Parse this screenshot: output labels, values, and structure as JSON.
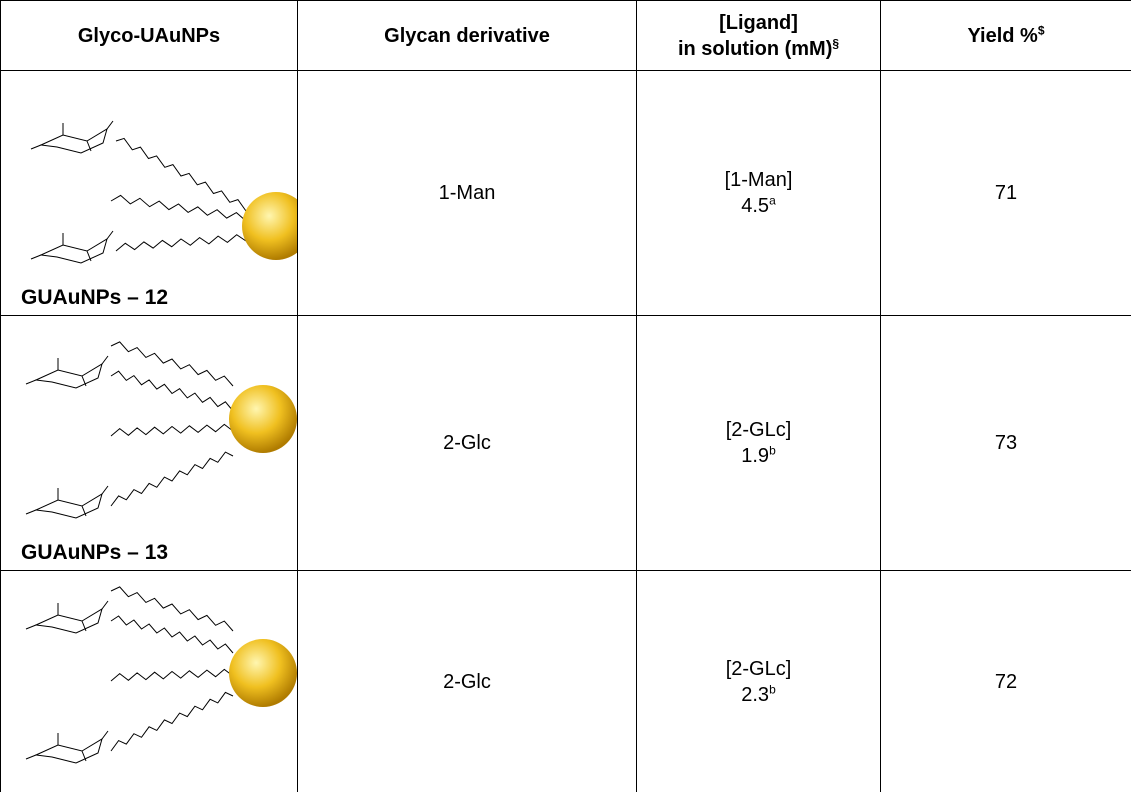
{
  "table": {
    "header": {
      "glyco": "Glyco-UAuNPs",
      "derivative": "Glycan derivative",
      "ligand_line1": "[Ligand]",
      "ligand_line2": "in solution (mM)",
      "ligand_sup": "§",
      "yield": "Yield %",
      "yield_sup": "$"
    },
    "rows": [
      {
        "nanoparticle": "GUAuNPs – 12",
        "derivative": "1-Man",
        "ligand": "[1-Man]",
        "concentration": 4.5,
        "note": "a",
        "yield": 71
      },
      {
        "nanoparticle": "GUAuNPs – 13",
        "derivative": "2-Glc",
        "ligand": "[2-GLc]",
        "concentration": 1.9,
        "note": "b",
        "yield": 73
      },
      {
        "derivative": "2-Glc",
        "ligand": "[2-GLc]",
        "concentration": 2.3,
        "note": "b",
        "yield": 72
      }
    ]
  }
}
